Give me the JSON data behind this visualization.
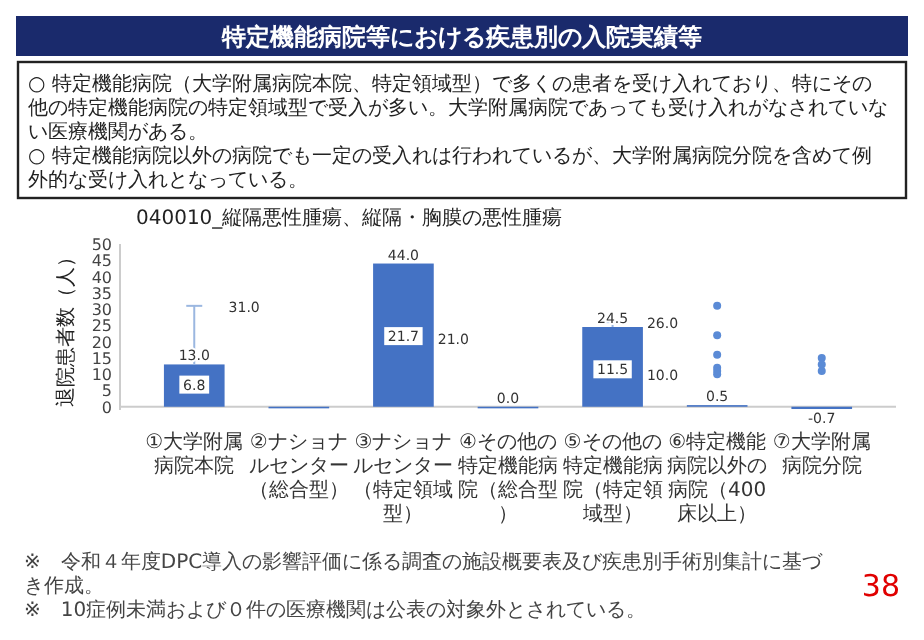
{
  "chart_data": {
    "type": "bar",
    "title": "特定機能病院等における疾患別の入院実績等",
    "subtitle": "040010_縦隔悪性腫瘍、縦隔・胸膜の悪性腫瘍",
    "ylabel": "退院患者数（人）",
    "categories": [
      "①大学附属病院本院",
      "②ナショナルセンター（総合型）",
      "③ナショナルセンター（特定領域型）",
      "④その他の特定機能病院（総合型）",
      "⑤その他の特定機能病院（特定領域型）",
      "⑥特定機能病院以外の病院（400床以上）",
      "⑦大学附属病院分院"
    ],
    "ylim": [
      -1,
      50
    ],
    "yticks": [
      0,
      5,
      10,
      15,
      20,
      25,
      30,
      35,
      40,
      45,
      50
    ],
    "grid": false,
    "series": [
      {
        "color": "#4472c4",
        "values": [
          13.0,
          0,
          44.0,
          0.0,
          24.5,
          0.5,
          -0.7
        ],
        "value_labels": [
          "13.0",
          null,
          "44.0",
          "0.0",
          "24.5",
          "0.5",
          "-0.7"
        ],
        "errors": [
          [
            13.0,
            31.0
          ],
          null,
          null,
          null,
          [
            24.5,
            26.0
          ],
          null,
          null
        ]
      },
      {
        "type": "scatter",
        "color": "#ffffff",
        "marker": "square",
        "values": [
          6.8,
          null,
          21.7,
          null,
          11.5,
          null,
          null
        ],
        "value_labels": [
          "6.8",
          null,
          "21.7",
          null,
          "11.5",
          null,
          null
        ]
      },
      {
        "type": "scatter",
        "color": "#5b8bd6",
        "marker": "circle",
        "values": [
          null,
          null,
          null,
          null,
          null,
          31.0,
          15.0
        ]
      },
      {
        "type": "scatter",
        "color": "#5b8bd6",
        "marker": "circle",
        "values": [
          null,
          null,
          null,
          null,
          null,
          22.0,
          13.0
        ]
      },
      {
        "type": "scatter",
        "color": "#5b8bd6",
        "marker": "circle",
        "values": [
          null,
          null,
          null,
          null,
          null,
          16.0,
          11.0
        ]
      },
      {
        "type": "scatter",
        "color": "#5b8bd6",
        "marker": "circle",
        "values": [
          null,
          null,
          null,
          null,
          null,
          12.0,
          null
        ]
      },
      {
        "type": "scatter",
        "color": "#5b8bd6",
        "marker": "circle",
        "values": [
          null,
          null,
          null,
          null,
          null,
          11.0,
          null
        ]
      },
      {
        "type": "scatter",
        "color": "#5b8bd6",
        "marker": "circle",
        "values": [
          null,
          null,
          null,
          null,
          null,
          10.0,
          null
        ]
      }
    ],
    "annotations": [
      "○ 特定機能病院（大学附属病院本院、特定領域型）で多くの患者を受け入れており、特にその他の特定機能病院の特定領域型で受入が多い。大学附属病院であっても受け入れがなされていない医療機関がある。",
      "○ 特定機能病院以外の病院でも一定の受入れは行われているが、大学附属病院分院を含めて例外的な受け入れとなっている。",
      "※　令和４年度DPC導入の影響評価に係る調査の施設概要表及び疾患別手術別集計に基づき作成。",
      "※　10症例未満および０件の医療機関は公表の対象外とされている。",
      "38",
      {
        "text": "31.0",
        "x": "①大学附属病院本院",
        "y": 31.0
      },
      {
        "text": "26.0",
        "x": "⑤その他の特定機能病院（特定領域型）",
        "y": 26.0
      },
      {
        "text": "21.0",
        "x": "③ナショナルセンター（特定領域型）",
        "y": 21.0
      },
      {
        "text": "10.0",
        "x": "⑤その他の特定機能病院（特定領域型）",
        "y": 10.0
      }
    ]
  }
}
